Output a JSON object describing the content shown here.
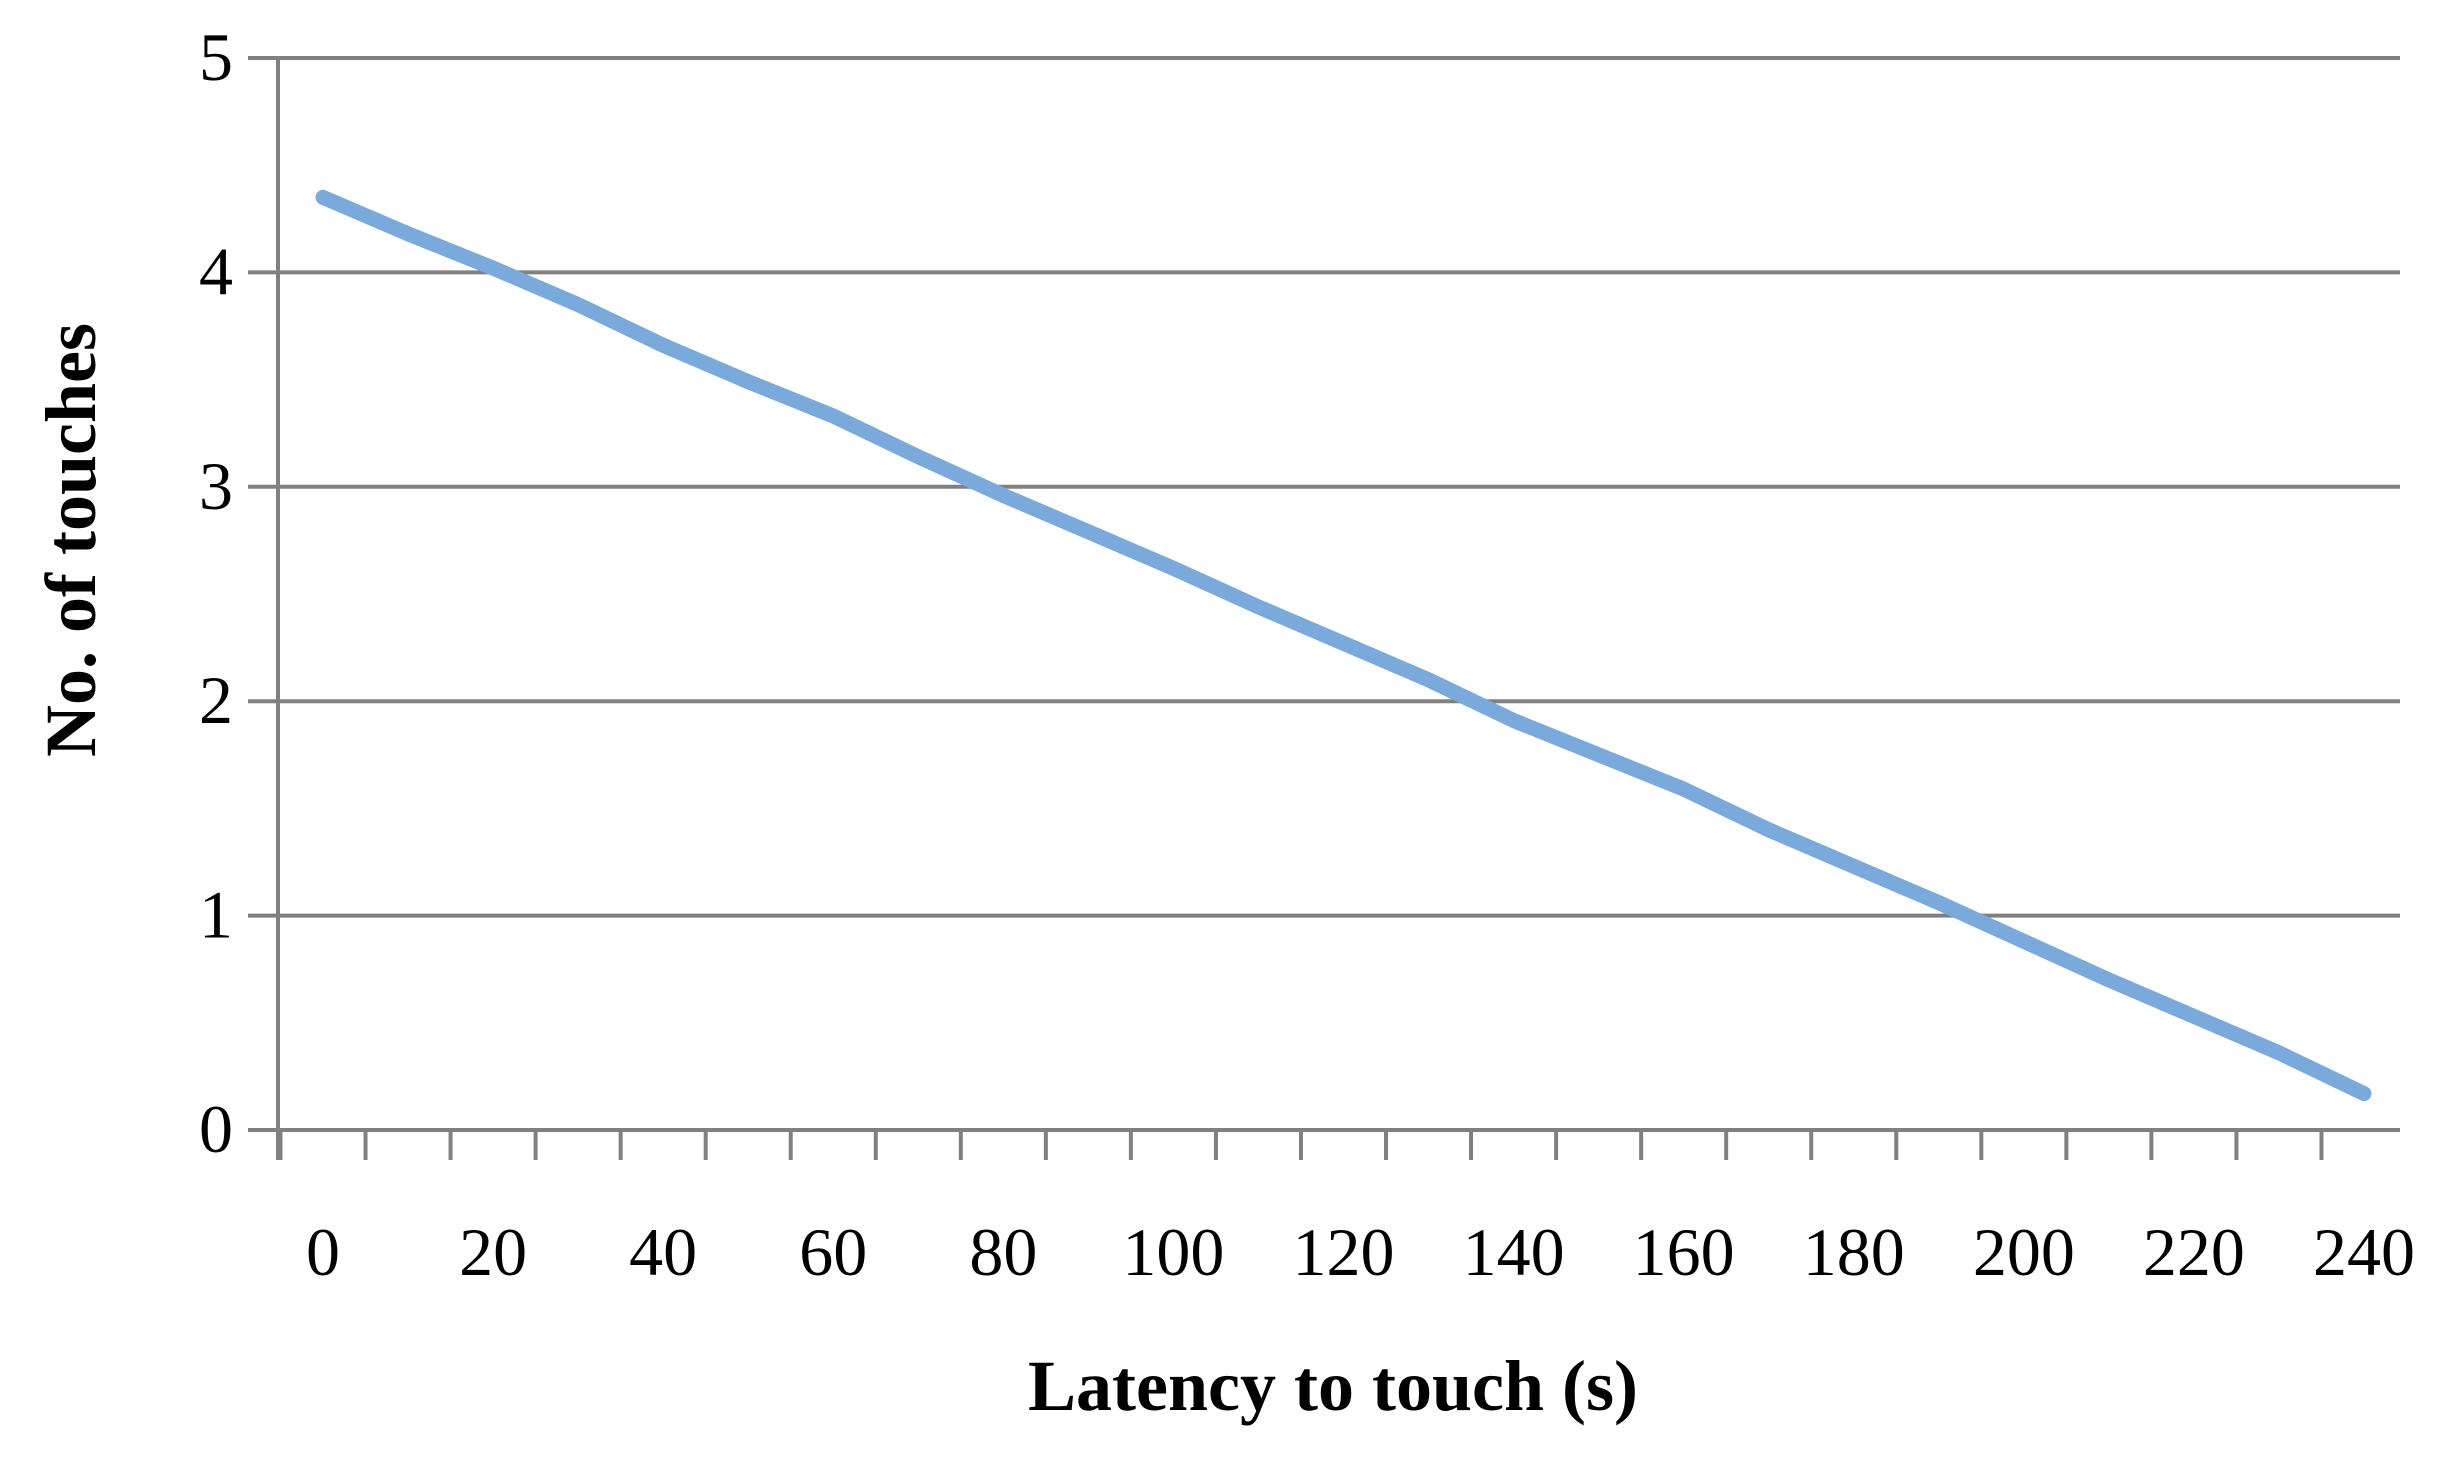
{
  "chart_data": {
    "type": "line",
    "title": "",
    "xlabel": "Latency to touch (s)",
    "ylabel": "No. of touches",
    "xlim": [
      -5,
      245
    ],
    "ylim": [
      0,
      5
    ],
    "x_ticks": [
      0,
      20,
      40,
      60,
      80,
      100,
      120,
      140,
      160,
      180,
      200,
      220,
      240
    ],
    "y_ticks": [
      0,
      1,
      2,
      3,
      4,
      5
    ],
    "grid": "horizontal",
    "legend": "none",
    "series": [
      {
        "color": "#7aaadc",
        "x": [
          0,
          10,
          20,
          30,
          40,
          50,
          60,
          70,
          80,
          90,
          100,
          110,
          120,
          130,
          140,
          150,
          160,
          170,
          180,
          190,
          200,
          210,
          220,
          230,
          240
        ],
        "y": [
          4.35,
          4.18,
          4.02,
          3.85,
          3.66,
          3.49,
          3.33,
          3.14,
          2.96,
          2.79,
          2.62,
          2.44,
          2.27,
          2.1,
          1.91,
          1.75,
          1.59,
          1.4,
          1.23,
          1.06,
          0.88,
          0.7,
          0.53,
          0.36,
          0.17
        ]
      }
    ]
  }
}
